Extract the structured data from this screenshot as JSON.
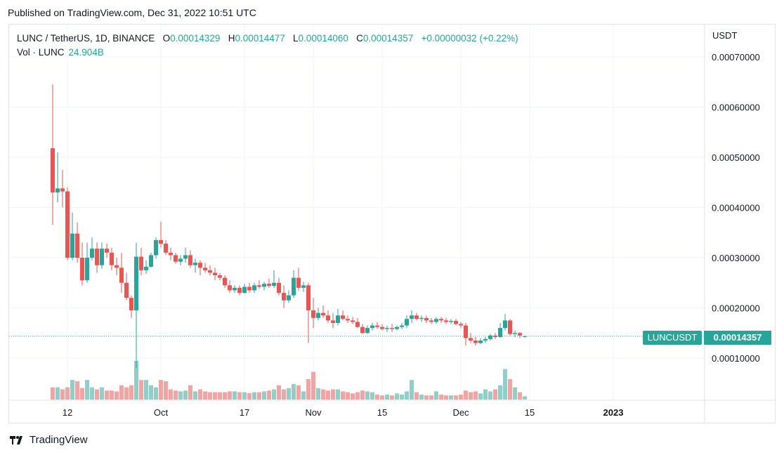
{
  "published": "Published on TradingView.com, Dec 31, 2022 10:51 UTC",
  "legend": {
    "symbol": "LUNC / TetherUS, 1D, BINANCE",
    "o_key": "O",
    "o_val": "0.00014329",
    "h_key": "H",
    "h_val": "0.00014477",
    "l_key": "L",
    "l_val": "0.00014060",
    "c_key": "C",
    "c_val": "0.00014357",
    "change": "+0.00000032 (+0.22%)",
    "vol_label": "Vol · LUNC",
    "vol_val": "24.904B"
  },
  "unit": "USDT",
  "badge": {
    "symbol": "LUNCUSDT",
    "price": "0.00014357"
  },
  "brand": "TradingView",
  "colors": {
    "up": "#26a69a",
    "down": "#ef5350",
    "up_vol": "#8fcfc8",
    "down_vol": "#f4a3a1"
  },
  "chart_data": {
    "type": "candlestick",
    "y_ticks": [
      "0.00070000",
      "0.00060000",
      "0.00050000",
      "0.00040000",
      "0.00030000",
      "0.00020000",
      "0.00010000"
    ],
    "ylim": [
      3e-05,
      0.00075
    ],
    "x_ticks": [
      {
        "label": "12",
        "i": 3
      },
      {
        "label": "Oct",
        "i": 22
      },
      {
        "label": "17",
        "i": 39
      },
      {
        "label": "Nov",
        "i": 53
      },
      {
        "label": "15",
        "i": 67
      },
      {
        "label": "Dec",
        "i": 83
      },
      {
        "label": "15",
        "i": 97
      },
      {
        "label": "2023",
        "i": 114
      }
    ],
    "last_price": 0.00014357,
    "ohlcv": [
      [
        0.000518,
        0.000645,
        0.000365,
        0.00043,
        0.3
      ],
      [
        0.00043,
        0.00051,
        0.00041,
        0.000438,
        0.3
      ],
      [
        0.000438,
        0.000475,
        0.0004,
        0.000432,
        0.25
      ],
      [
        0.000432,
        0.00044,
        0.000295,
        0.0003,
        0.3
      ],
      [
        0.0003,
        0.00039,
        0.000295,
        0.000348,
        0.48
      ],
      [
        0.000348,
        0.00037,
        0.00029,
        0.0003,
        0.45
      ],
      [
        0.0003,
        0.00033,
        0.000245,
        0.000255,
        0.28
      ],
      [
        0.000255,
        0.00033,
        0.00025,
        0.0003,
        0.48
      ],
      [
        0.0003,
        0.00034,
        0.000295,
        0.000318,
        0.3
      ],
      [
        0.000318,
        0.00033,
        0.00027,
        0.000285,
        0.25
      ],
      [
        0.000285,
        0.00033,
        0.000278,
        0.000318,
        0.3
      ],
      [
        0.000318,
        0.000328,
        0.0003,
        0.00031,
        0.22
      ],
      [
        0.00031,
        0.00032,
        0.000275,
        0.000285,
        0.22
      ],
      [
        0.000285,
        0.0003,
        0.000265,
        0.00028,
        0.2
      ],
      [
        0.00028,
        0.00031,
        0.00023,
        0.00025,
        0.35
      ],
      [
        0.00025,
        0.00027,
        0.000215,
        0.00022,
        0.3
      ],
      [
        0.00022,
        0.000225,
        0.00018,
        0.000195,
        0.35
      ],
      [
        0.000195,
        0.00033,
        8e-05,
        0.000302,
        0.95
      ],
      [
        0.000302,
        0.00032,
        0.000265,
        0.000275,
        0.48
      ],
      [
        0.000275,
        0.000295,
        0.000268,
        0.000282,
        0.48
      ],
      [
        0.000282,
        0.00031,
        0.00028,
        0.000305,
        0.35
      ],
      [
        0.000305,
        0.00034,
        0.000298,
        0.000335,
        0.3
      ],
      [
        0.000335,
        0.000372,
        0.00032,
        0.000328,
        0.48
      ],
      [
        0.000328,
        0.000335,
        0.000305,
        0.00031,
        0.45
      ],
      [
        0.00031,
        0.00032,
        0.000295,
        0.000305,
        0.25
      ],
      [
        0.000305,
        0.00031,
        0.000288,
        0.000292,
        0.22
      ],
      [
        0.000292,
        0.000305,
        0.000285,
        0.000298,
        0.2
      ],
      [
        0.000298,
        0.00032,
        0.00029,
        0.000305,
        0.22
      ],
      [
        0.000305,
        0.000315,
        0.00028,
        0.000285,
        0.35
      ],
      [
        0.000285,
        0.000298,
        0.00027,
        0.00029,
        0.2
      ],
      [
        0.00029,
        0.000295,
        0.000265,
        0.00028,
        0.25
      ],
      [
        0.00028,
        0.00029,
        0.00027,
        0.000275,
        0.2
      ],
      [
        0.000275,
        0.000285,
        0.000265,
        0.00027,
        0.18
      ],
      [
        0.00027,
        0.00028,
        0.000255,
        0.000265,
        0.18
      ],
      [
        0.000265,
        0.00027,
        0.000255,
        0.00026,
        0.18
      ],
      [
        0.00026,
        0.000265,
        0.00024,
        0.000245,
        0.18
      ],
      [
        0.000245,
        0.000255,
        0.00023,
        0.000235,
        0.2
      ],
      [
        0.000235,
        0.000245,
        0.00023,
        0.00024,
        0.2
      ],
      [
        0.00024,
        0.000245,
        0.000225,
        0.00023,
        0.18
      ],
      [
        0.00023,
        0.000248,
        0.000228,
        0.000242,
        0.18
      ],
      [
        0.000242,
        0.00025,
        0.00023,
        0.000235,
        0.16
      ],
      [
        0.000235,
        0.00025,
        0.00023,
        0.000245,
        0.18
      ],
      [
        0.000245,
        0.000255,
        0.000238,
        0.000242,
        0.18
      ],
      [
        0.000242,
        0.000252,
        0.000235,
        0.000248,
        0.2
      ],
      [
        0.000248,
        0.000258,
        0.00024,
        0.000244,
        0.22
      ],
      [
        0.000244,
        0.000275,
        0.00024,
        0.00025,
        0.25
      ],
      [
        0.00025,
        0.00026,
        0.000225,
        0.00023,
        0.35
      ],
      [
        0.00023,
        0.000245,
        0.0002,
        0.000215,
        0.25
      ],
      [
        0.000215,
        0.000235,
        0.00021,
        0.000225,
        0.28
      ],
      [
        0.000225,
        0.000275,
        0.00022,
        0.00026,
        0.38
      ],
      [
        0.00026,
        0.00028,
        0.000235,
        0.00024,
        0.35
      ],
      [
        0.00024,
        0.000252,
        0.000232,
        0.000245,
        0.2
      ],
      [
        0.000245,
        0.00025,
        0.00013,
        0.000195,
        0.5
      ],
      [
        0.000195,
        0.00022,
        0.00016,
        0.00018,
        0.68
      ],
      [
        0.00018,
        0.0002,
        0.000175,
        0.00019,
        0.28
      ],
      [
        0.00019,
        0.000205,
        0.00018,
        0.000185,
        0.25
      ],
      [
        0.000185,
        0.000195,
        0.00017,
        0.000175,
        0.22
      ],
      [
        0.000175,
        0.00019,
        0.00016,
        0.00017,
        0.25
      ],
      [
        0.00017,
        0.000198,
        0.000165,
        0.000185,
        0.25
      ],
      [
        0.000185,
        0.000195,
        0.000175,
        0.000178,
        0.2
      ],
      [
        0.000178,
        0.000185,
        0.00017,
        0.000175,
        0.18
      ],
      [
        0.000175,
        0.000182,
        0.000168,
        0.000172,
        0.15
      ],
      [
        0.000172,
        0.00018,
        0.00016,
        0.000162,
        0.18
      ],
      [
        0.000162,
        0.000168,
        0.000148,
        0.00015,
        0.22
      ],
      [
        0.00015,
        0.000165,
        0.000148,
        0.00016,
        0.2
      ],
      [
        0.00016,
        0.00017,
        0.000155,
        0.000165,
        0.18
      ],
      [
        0.000165,
        0.000172,
        0.000158,
        0.000162,
        0.12
      ],
      [
        0.000162,
        0.000168,
        0.000155,
        0.000158,
        0.1
      ],
      [
        0.000158,
        0.000165,
        0.000152,
        0.00016,
        0.12
      ],
      [
        0.00016,
        0.000168,
        0.000152,
        0.000158,
        0.1
      ],
      [
        0.000158,
        0.000165,
        0.000155,
        0.000162,
        0.15
      ],
      [
        0.000162,
        0.00017,
        0.000158,
        0.000165,
        0.12
      ],
      [
        0.000165,
        0.000185,
        0.00016,
        0.000178,
        0.2
      ],
      [
        0.000178,
        0.000195,
        0.00017,
        0.000185,
        0.48
      ],
      [
        0.000185,
        0.00019,
        0.000175,
        0.000178,
        0.18
      ],
      [
        0.000178,
        0.000185,
        0.000172,
        0.00018,
        0.12
      ],
      [
        0.00018,
        0.000185,
        0.00017,
        0.000175,
        0.1
      ],
      [
        0.000175,
        0.00018,
        0.000168,
        0.000172,
        0.1
      ],
      [
        0.000172,
        0.000182,
        0.000168,
        0.000178,
        0.2
      ],
      [
        0.000178,
        0.000182,
        0.00017,
        0.000175,
        0.12
      ],
      [
        0.000175,
        0.00018,
        0.000168,
        0.000172,
        0.1
      ],
      [
        0.000172,
        0.000178,
        0.000168,
        0.000174,
        0.1
      ],
      [
        0.000174,
        0.000178,
        0.000165,
        0.000168,
        0.1
      ],
      [
        0.000168,
        0.000172,
        0.00016,
        0.000165,
        0.12
      ],
      [
        0.000165,
        0.00017,
        0.000125,
        0.00014,
        0.22
      ],
      [
        0.00014,
        0.00015,
        0.00013,
        0.000135,
        0.18
      ],
      [
        0.000135,
        0.000142,
        0.000125,
        0.00013,
        0.2
      ],
      [
        0.00013,
        0.00014,
        0.000128,
        0.000135,
        0.15
      ],
      [
        0.000135,
        0.000142,
        0.00013,
        0.000138,
        0.25
      ],
      [
        0.000138,
        0.000148,
        0.000135,
        0.000145,
        0.2
      ],
      [
        0.000145,
        0.00015,
        0.000138,
        0.000142,
        0.25
      ],
      [
        0.000142,
        0.00017,
        0.00014,
        0.00016,
        0.35
      ],
      [
        0.00016,
        0.000188,
        0.000155,
        0.000175,
        0.75
      ],
      [
        0.000175,
        0.000178,
        0.000145,
        0.000148,
        0.5
      ],
      [
        0.000148,
        0.000155,
        0.000142,
        0.00015,
        0.3
      ],
      [
        0.00015,
        0.000152,
        0.00014,
        0.000145,
        0.18
      ],
      [
        0.00014329,
        0.00014477,
        0.0001406,
        0.00014357,
        0.08
      ]
    ]
  }
}
